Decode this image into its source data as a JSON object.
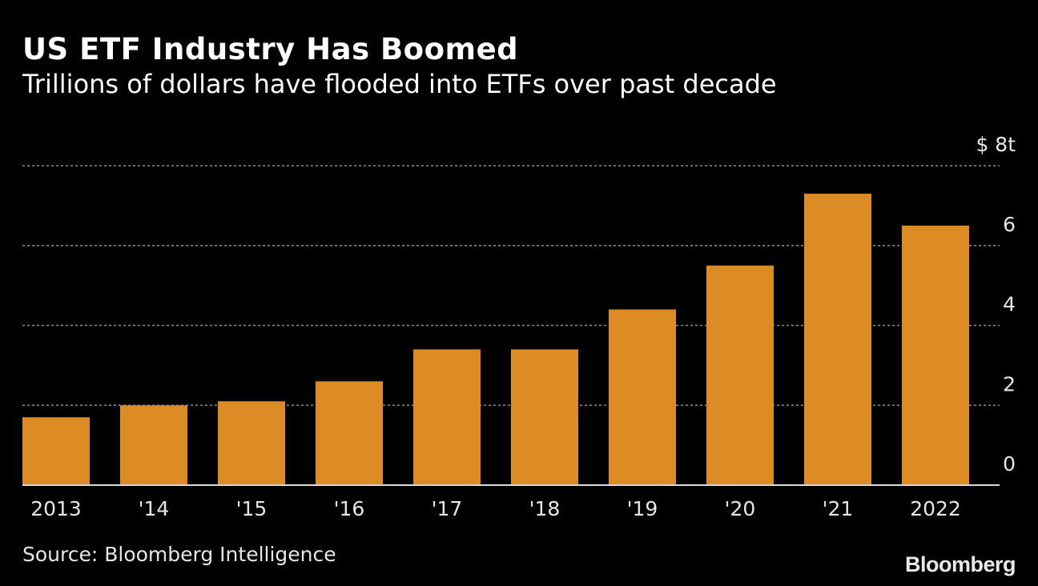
{
  "chart_data": {
    "type": "bar",
    "title": "US ETF Industry Has Boomed",
    "subtitle": "Trillions of dollars have flooded into ETFs over past decade",
    "categories": [
      "2013",
      "'14",
      "'15",
      "'16",
      "'17",
      "'18",
      "'19",
      "'20",
      "'21",
      "2022"
    ],
    "values": [
      1.7,
      2.0,
      2.1,
      2.6,
      3.4,
      3.4,
      4.4,
      5.5,
      7.3,
      6.5
    ],
    "yticks": [
      0,
      2,
      4,
      6,
      8
    ],
    "ytick_labels": [
      "0",
      "2",
      "4",
      "6",
      "$ 8t"
    ],
    "ylim": [
      0,
      8
    ],
    "xlabel": "",
    "ylabel": "",
    "grid": true,
    "bar_color": "#dd8b25"
  },
  "footer": {
    "source": "Source: Bloomberg Intelligence",
    "brand": "Bloomberg"
  }
}
